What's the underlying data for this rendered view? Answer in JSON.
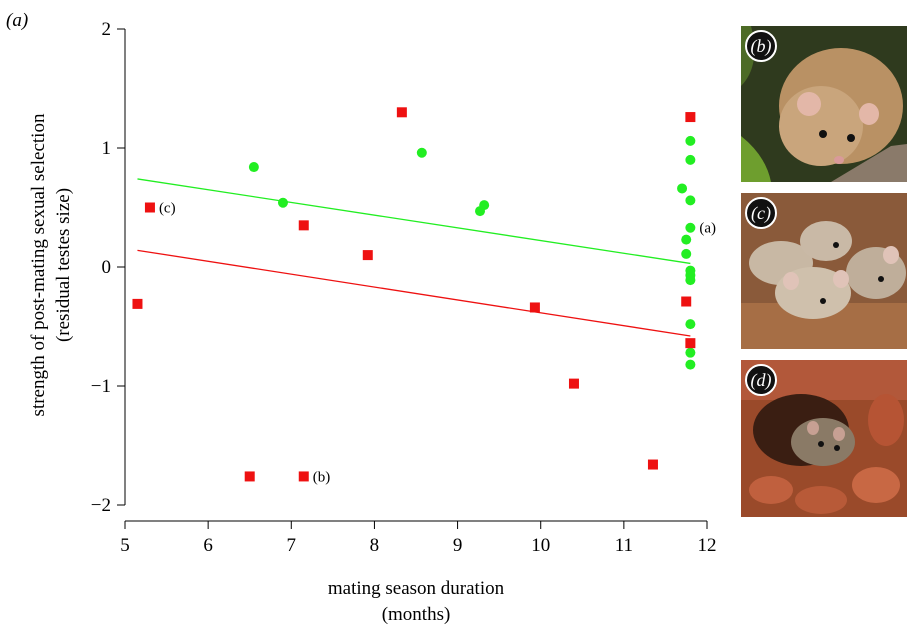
{
  "panel_label": "(a)",
  "colors": {
    "green": "#22ee22",
    "red": "#ee1111",
    "axis": "#000000"
  },
  "chart_data": {
    "type": "scatter",
    "xlabel_line1": "mating season duration",
    "xlabel_line2": "(months)",
    "ylabel_line1": "strength of post-mating sexual selection",
    "ylabel_line2": "(residual testes size)",
    "xlim": [
      5,
      12
    ],
    "ylim": [
      -2,
      2
    ],
    "xticks": [
      "5",
      "6",
      "7",
      "8",
      "9",
      "10",
      "11",
      "12"
    ],
    "yticks": [
      "−2",
      "−1",
      "0",
      "1",
      "2"
    ],
    "grid": false,
    "series": [
      {
        "marker": "circle",
        "color": "#22ee22",
        "points": [
          [
            6.55,
            0.84
          ],
          [
            6.9,
            0.54
          ],
          [
            8.57,
            0.96
          ],
          [
            9.27,
            0.47
          ],
          [
            9.32,
            0.52
          ],
          [
            11.7,
            0.66
          ],
          [
            11.8,
            1.06
          ],
          [
            11.8,
            0.9
          ],
          [
            11.8,
            0.56
          ],
          [
            11.8,
            0.33
          ],
          [
            11.75,
            0.23
          ],
          [
            11.75,
            0.11
          ],
          [
            11.8,
            -0.03
          ],
          [
            11.8,
            -0.07
          ],
          [
            11.8,
            -0.11
          ],
          [
            11.8,
            -0.48
          ],
          [
            11.8,
            -0.72
          ],
          [
            11.8,
            -0.82
          ]
        ],
        "trend": [
          [
            5.15,
            0.74
          ],
          [
            11.8,
            0.03
          ]
        ]
      },
      {
        "marker": "square",
        "color": "#ee1111",
        "points": [
          [
            5.15,
            -0.31
          ],
          [
            5.3,
            0.5
          ],
          [
            6.5,
            -1.76
          ],
          [
            7.15,
            0.35
          ],
          [
            7.15,
            -1.76
          ],
          [
            7.92,
            0.1
          ],
          [
            8.33,
            1.3
          ],
          [
            9.93,
            -0.34
          ],
          [
            10.4,
            -0.98
          ],
          [
            11.35,
            -1.66
          ],
          [
            11.75,
            -0.29
          ],
          [
            11.8,
            1.26
          ],
          [
            11.8,
            -0.64
          ]
        ],
        "trend": [
          [
            5.15,
            0.14
          ],
          [
            11.8,
            -0.58
          ]
        ]
      }
    ],
    "annotations": [
      {
        "x": 5.3,
        "y": 0.5,
        "text": "(c)"
      },
      {
        "x": 7.15,
        "y": -1.76,
        "text": "(b)"
      },
      {
        "x": 11.8,
        "y": 0.33,
        "text": "(a)"
      }
    ]
  },
  "photos": [
    {
      "label": "(b)",
      "icon": "mouse-on-branch-photo"
    },
    {
      "label": "(c)",
      "icon": "group-of-mice-photo"
    },
    {
      "label": "(d)",
      "icon": "mouse-in-burrow-photo"
    }
  ]
}
